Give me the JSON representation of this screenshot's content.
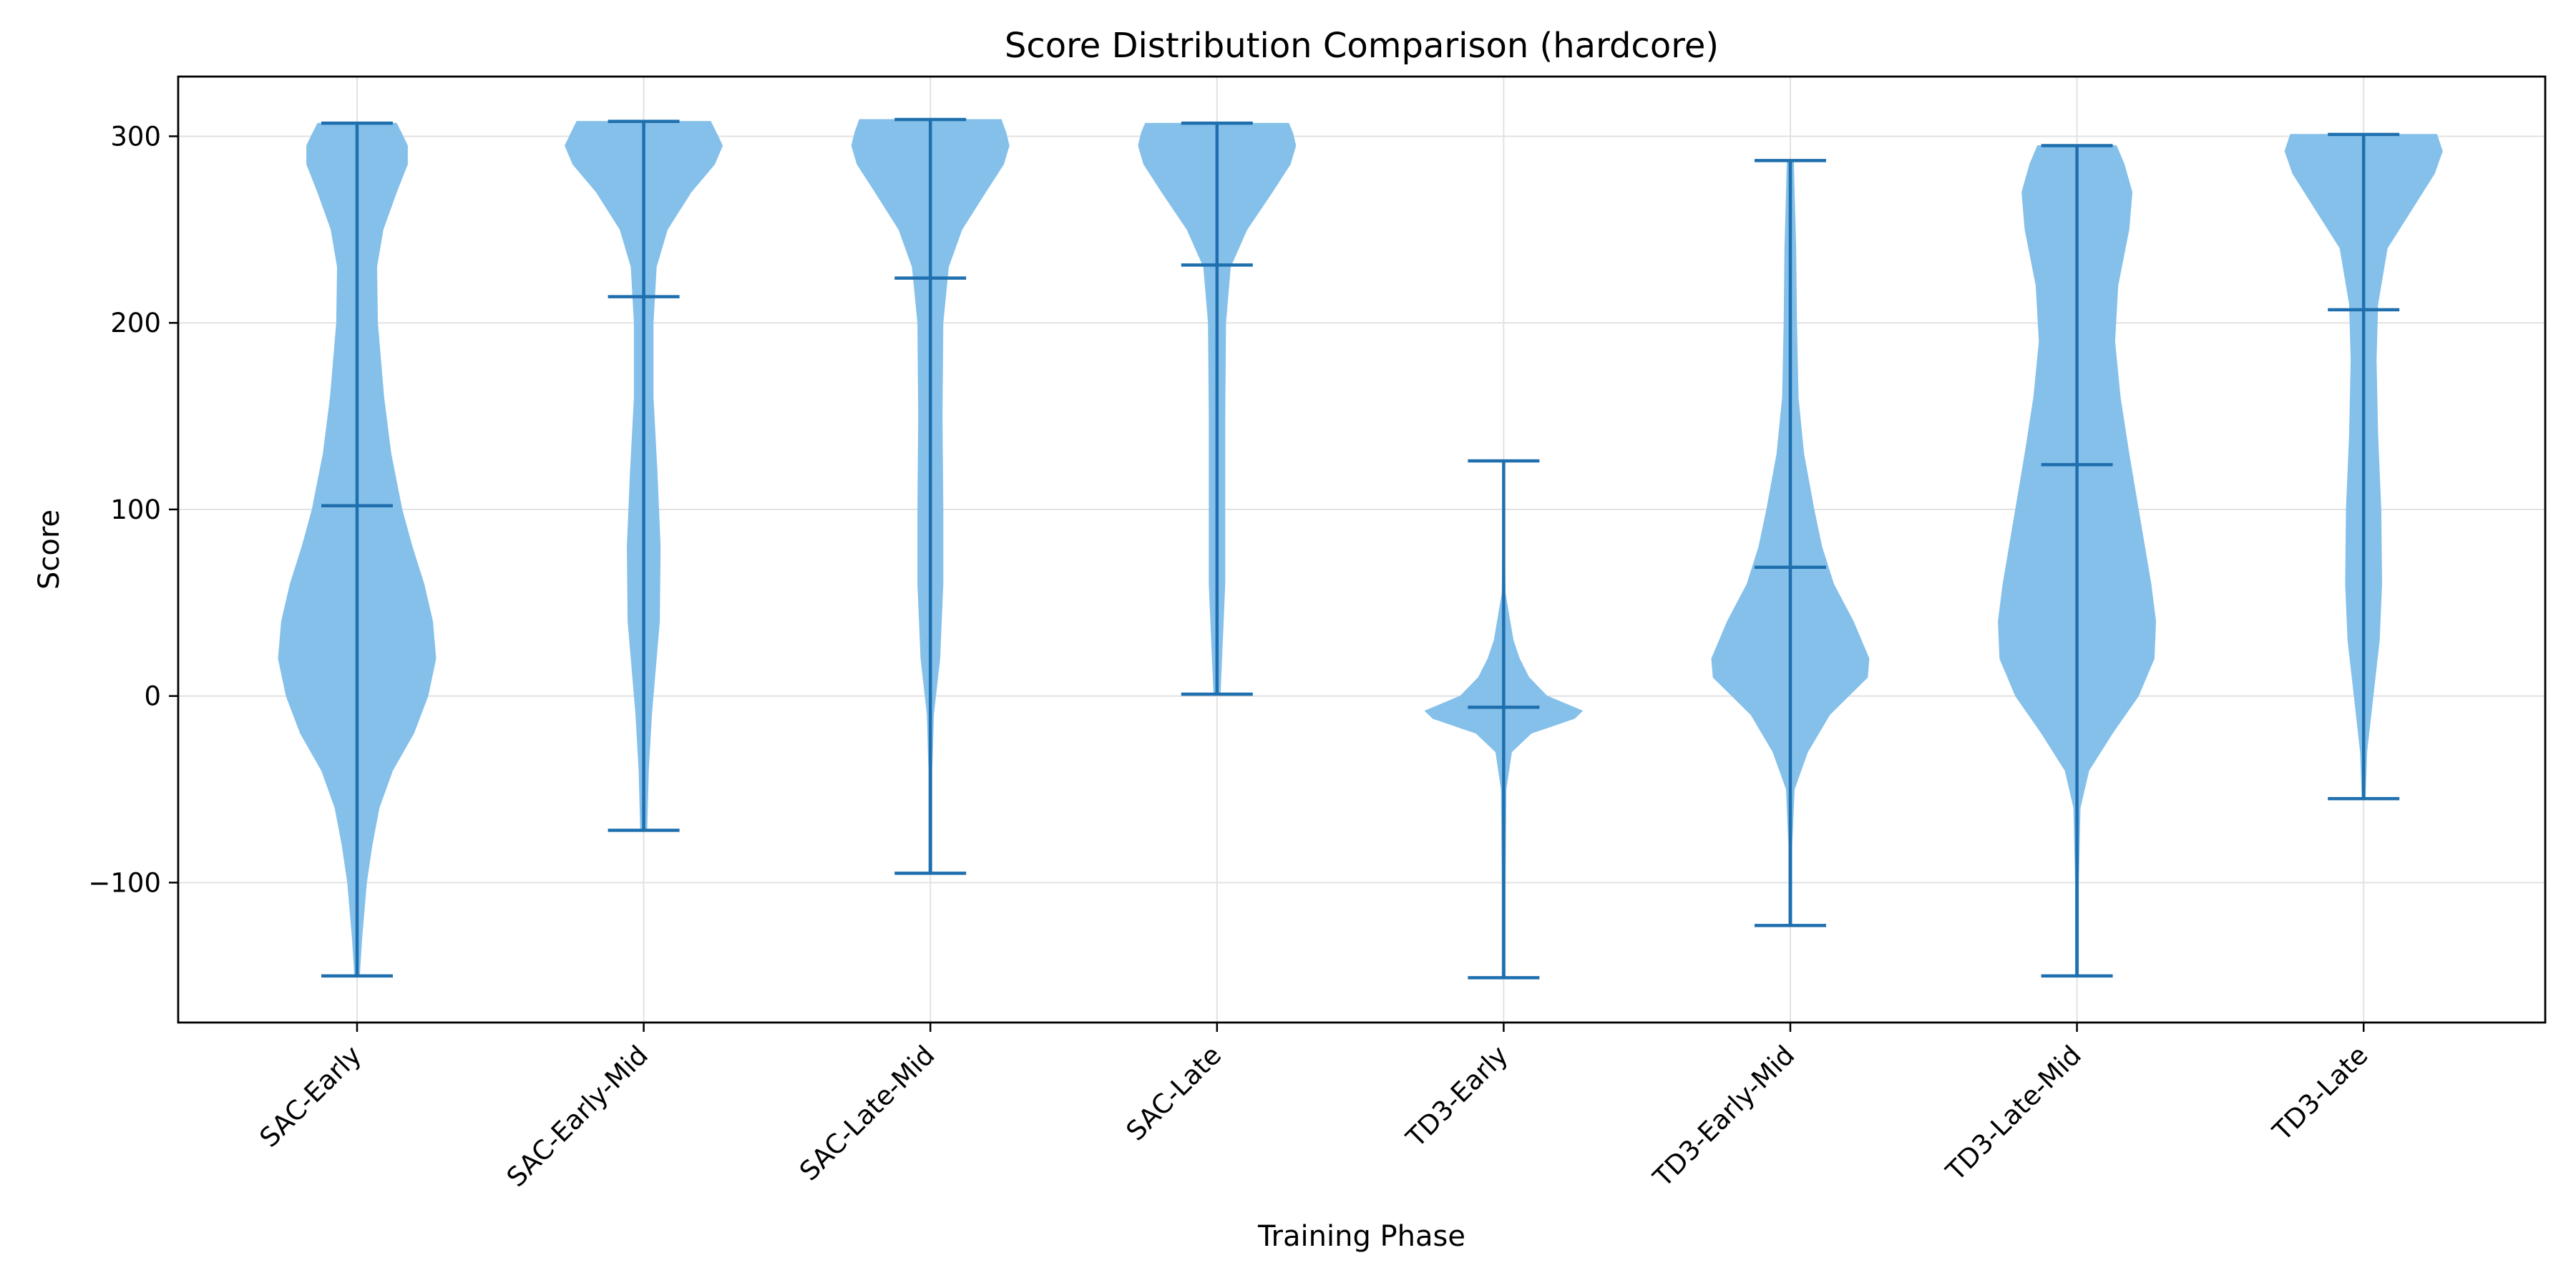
{
  "chart_data": {
    "type": "violin",
    "title": "Score Distribution Comparison (hardcore)",
    "xlabel": "Training Phase",
    "ylabel": "Score",
    "ylim": [
      -175,
      332
    ],
    "yticks": [
      -100,
      0,
      100,
      200,
      300
    ],
    "ytick_labels": [
      "−100",
      "0",
      "100",
      "200",
      "300"
    ],
    "grid": true,
    "colors": {
      "body": "#85c0ea",
      "lines": "#1f6fae",
      "grid": "#e2e2e2",
      "axis": "#000000"
    },
    "categories": [
      "SAC-Early",
      "SAC-Early-Mid",
      "SAC-Late-Mid",
      "SAC-Late",
      "TD3-Early",
      "TD3-Early-Mid",
      "TD3-Late-Mid",
      "TD3-Late"
    ],
    "series": [
      {
        "min": -150,
        "mean": 102,
        "max": 307,
        "density": [
          [
            -150,
            0.03
          ],
          [
            -130,
            0.06
          ],
          [
            -100,
            0.12
          ],
          [
            -80,
            0.19
          ],
          [
            -60,
            0.28
          ],
          [
            -40,
            0.45
          ],
          [
            -20,
            0.72
          ],
          [
            0,
            0.9
          ],
          [
            20,
            1.0
          ],
          [
            40,
            0.96
          ],
          [
            60,
            0.85
          ],
          [
            80,
            0.7
          ],
          [
            100,
            0.57
          ],
          [
            130,
            0.43
          ],
          [
            160,
            0.34
          ],
          [
            200,
            0.26
          ],
          [
            230,
            0.25
          ],
          [
            250,
            0.33
          ],
          [
            270,
            0.5
          ],
          [
            285,
            0.64
          ],
          [
            295,
            0.64
          ],
          [
            302,
            0.56
          ],
          [
            307,
            0.5
          ]
        ]
      },
      {
        "min": -72,
        "mean": 214,
        "max": 308,
        "density": [
          [
            -72,
            0.04
          ],
          [
            -40,
            0.06
          ],
          [
            -10,
            0.1
          ],
          [
            10,
            0.14
          ],
          [
            40,
            0.2
          ],
          [
            80,
            0.21
          ],
          [
            120,
            0.17
          ],
          [
            160,
            0.12
          ],
          [
            200,
            0.12
          ],
          [
            230,
            0.16
          ],
          [
            250,
            0.3
          ],
          [
            270,
            0.6
          ],
          [
            285,
            0.9
          ],
          [
            295,
            1.0
          ],
          [
            302,
            0.92
          ],
          [
            308,
            0.85
          ]
        ]
      },
      {
        "min": -95,
        "mean": 224,
        "max": 309,
        "density": [
          [
            -95,
            0.02
          ],
          [
            -40,
            0.02
          ],
          [
            -10,
            0.04
          ],
          [
            20,
            0.12
          ],
          [
            60,
            0.16
          ],
          [
            100,
            0.16
          ],
          [
            150,
            0.15
          ],
          [
            200,
            0.16
          ],
          [
            230,
            0.23
          ],
          [
            250,
            0.4
          ],
          [
            270,
            0.7
          ],
          [
            285,
            0.93
          ],
          [
            295,
            1.0
          ],
          [
            302,
            0.96
          ],
          [
            309,
            0.9
          ]
        ]
      },
      {
        "min": 1,
        "mean": 231,
        "max": 307,
        "density": [
          [
            1,
            0.04
          ],
          [
            20,
            0.06
          ],
          [
            60,
            0.1
          ],
          [
            100,
            0.1
          ],
          [
            150,
            0.1
          ],
          [
            200,
            0.11
          ],
          [
            230,
            0.17
          ],
          [
            250,
            0.38
          ],
          [
            270,
            0.7
          ],
          [
            285,
            0.93
          ],
          [
            295,
            1.0
          ],
          [
            302,
            0.96
          ],
          [
            307,
            0.91
          ]
        ]
      },
      {
        "min": -151,
        "mean": -6,
        "max": 126,
        "density": [
          [
            -151,
            0.02
          ],
          [
            -100,
            0.02
          ],
          [
            -50,
            0.03
          ],
          [
            -30,
            0.1
          ],
          [
            -20,
            0.35
          ],
          [
            -12,
            0.9
          ],
          [
            -8,
            1.0
          ],
          [
            0,
            0.55
          ],
          [
            10,
            0.32
          ],
          [
            20,
            0.2
          ],
          [
            30,
            0.12
          ],
          [
            45,
            0.06
          ],
          [
            55,
            0.02
          ],
          [
            80,
            0.01
          ],
          [
            126,
            0.01
          ]
        ]
      },
      {
        "min": -123,
        "mean": 69,
        "max": 287,
        "density": [
          [
            -123,
            0.02
          ],
          [
            -80,
            0.02
          ],
          [
            -50,
            0.05
          ],
          [
            -30,
            0.22
          ],
          [
            -10,
            0.5
          ],
          [
            10,
            0.98
          ],
          [
            20,
            1.0
          ],
          [
            40,
            0.8
          ],
          [
            60,
            0.55
          ],
          [
            80,
            0.4
          ],
          [
            100,
            0.3
          ],
          [
            130,
            0.17
          ],
          [
            160,
            0.1
          ],
          [
            200,
            0.08
          ],
          [
            240,
            0.07
          ],
          [
            270,
            0.05
          ],
          [
            287,
            0.04
          ]
        ]
      },
      {
        "min": -150,
        "mean": 124,
        "max": 295,
        "density": [
          [
            -150,
            0.02
          ],
          [
            -100,
            0.02
          ],
          [
            -60,
            0.04
          ],
          [
            -40,
            0.15
          ],
          [
            -20,
            0.45
          ],
          [
            0,
            0.78
          ],
          [
            20,
            0.98
          ],
          [
            40,
            1.0
          ],
          [
            60,
            0.94
          ],
          [
            80,
            0.86
          ],
          [
            100,
            0.78
          ],
          [
            130,
            0.66
          ],
          [
            160,
            0.55
          ],
          [
            190,
            0.48
          ],
          [
            220,
            0.52
          ],
          [
            250,
            0.66
          ],
          [
            270,
            0.7
          ],
          [
            285,
            0.6
          ],
          [
            295,
            0.5
          ]
        ]
      },
      {
        "min": -55,
        "mean": 207,
        "max": 301,
        "density": [
          [
            -55,
            0.02
          ],
          [
            -30,
            0.04
          ],
          [
            0,
            0.12
          ],
          [
            30,
            0.2
          ],
          [
            60,
            0.23
          ],
          [
            100,
            0.22
          ],
          [
            140,
            0.18
          ],
          [
            180,
            0.16
          ],
          [
            210,
            0.18
          ],
          [
            240,
            0.3
          ],
          [
            260,
            0.6
          ],
          [
            280,
            0.9
          ],
          [
            292,
            1.0
          ],
          [
            301,
            0.93
          ]
        ]
      }
    ]
  }
}
